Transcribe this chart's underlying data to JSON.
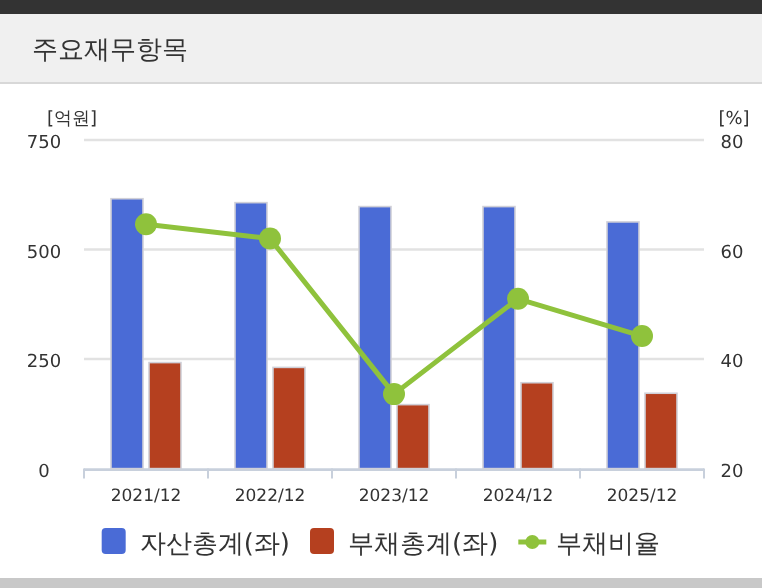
{
  "chart_data": {
    "type": "bar",
    "title": "주요재무항목",
    "ylabel": "[억원]",
    "y2label": "[%]",
    "categories": [
      "2021/12",
      "2022/12",
      "2023/12",
      "2024/12",
      "2025/12"
    ],
    "series": [
      {
        "name": "자산총계(좌)",
        "color": "#4a6bd6",
        "values": [
          616,
          607,
          598,
          598,
          563
        ]
      },
      {
        "name": "부채총계(좌)",
        "color": "#b5401f",
        "values": [
          242,
          231,
          146,
          196,
          172
        ]
      },
      {
        "name": "부채비율",
        "type": "line",
        "axis": "y2",
        "color": "#8fc23c",
        "marker": "circle",
        "values": [
          64.6,
          62.0,
          33.6,
          51.0,
          44.2
        ]
      }
    ],
    "ylim": [
      0,
      750
    ],
    "yticks": [
      0,
      250,
      500,
      750
    ],
    "y2lim": [
      20,
      80
    ],
    "y2ticks": [
      20,
      40,
      60,
      80
    ],
    "grid": "y",
    "legend": "bottom"
  }
}
